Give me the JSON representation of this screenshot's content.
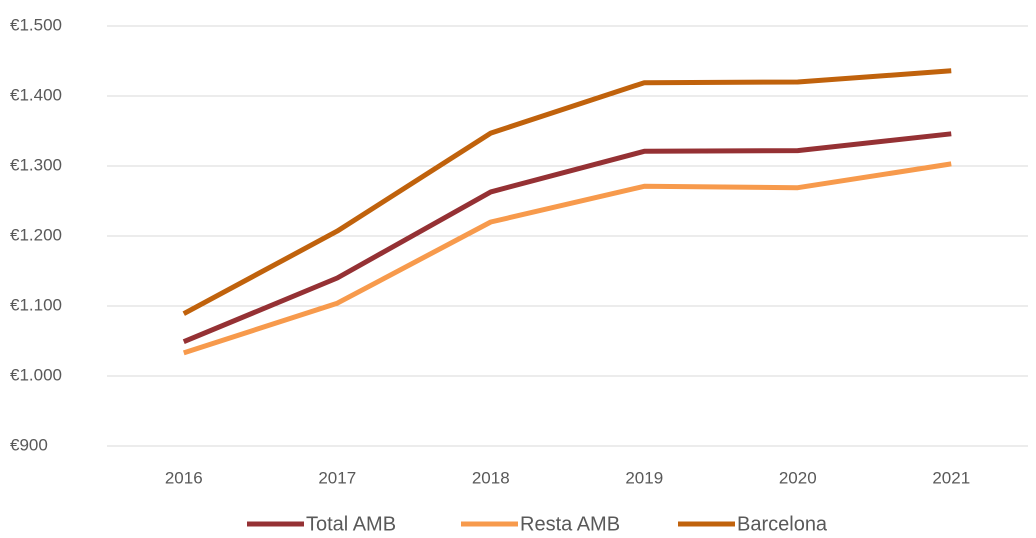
{
  "chart_data": {
    "type": "line",
    "categories": [
      "2016",
      "2017",
      "2018",
      "2019",
      "2020",
      "2021"
    ],
    "series": [
      {
        "name": "Total AMB",
        "color": "#953134",
        "values": [
          1049,
          1140,
          1263,
          1321,
          1322,
          1346
        ]
      },
      {
        "name": "Resta AMB",
        "color": "#f79a4c",
        "values": [
          1033,
          1104,
          1220,
          1271,
          1269,
          1303
        ]
      },
      {
        "name": "Barcelona",
        "color": "#c0620c",
        "values": [
          1089,
          1207,
          1347,
          1419,
          1420,
          1436
        ]
      }
    ],
    "ylim": [
      900,
      1500
    ],
    "yticks": [
      {
        "value": 900,
        "label": "€900"
      },
      {
        "value": 1000,
        "label": "€1.000"
      },
      {
        "value": 1100,
        "label": "€1.100"
      },
      {
        "value": 1200,
        "label": "€1.200"
      },
      {
        "value": 1300,
        "label": "€1.300"
      },
      {
        "value": 1400,
        "label": "€1.400"
      },
      {
        "value": 1500,
        "label": "€1.500"
      }
    ],
    "grid": true,
    "legend": "bottom"
  }
}
